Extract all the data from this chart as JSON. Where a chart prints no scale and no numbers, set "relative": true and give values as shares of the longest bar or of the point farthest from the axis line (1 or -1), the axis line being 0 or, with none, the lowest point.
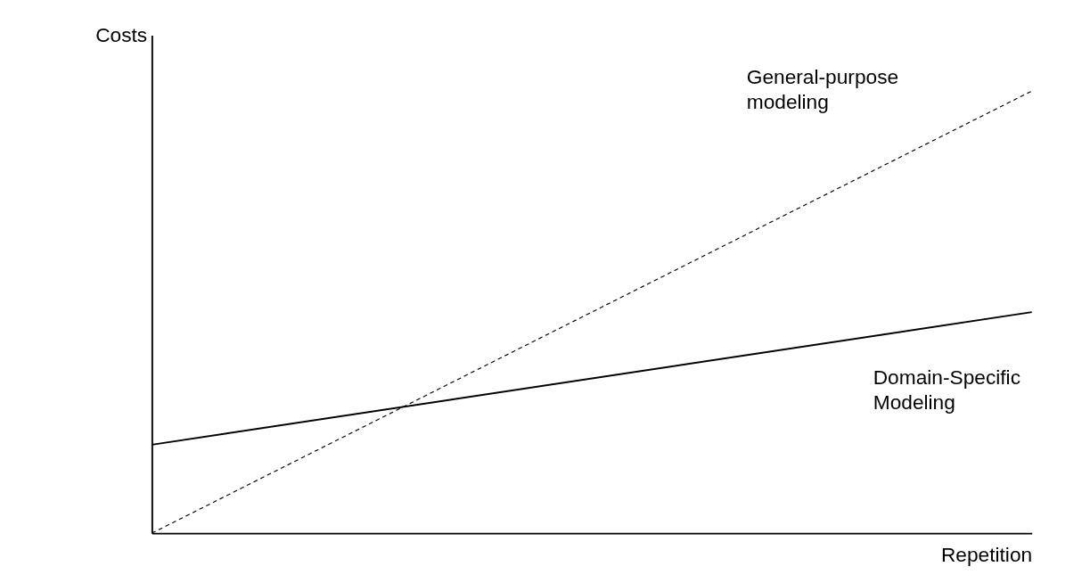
{
  "chart_data": {
    "type": "line",
    "relative": true,
    "xlabel": "Repetition",
    "ylabel": "Costs",
    "categories": [
      null,
      null
    ],
    "legend": false,
    "grid": false,
    "marker": "none",
    "tick_labels": false,
    "series": [
      {
        "name": "General-purpose modeling",
        "color": "#000000",
        "line_style": "dashed",
        "values": [
          0,
          1
        ]
      },
      {
        "name": "Domain-Specific Modeling",
        "color": "#000000",
        "line_style": "solid",
        "values": [
          0.2,
          0.5
        ]
      }
    ]
  }
}
